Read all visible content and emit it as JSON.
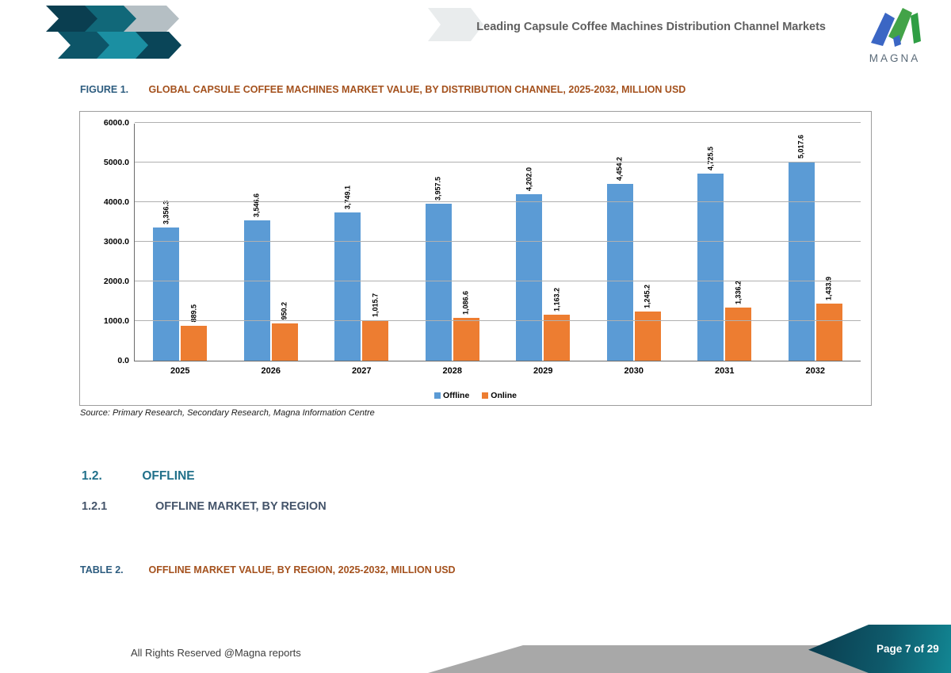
{
  "header": {
    "title": "Leading Capsule Coffee Machines Distribution Channel Markets",
    "logo_text": "MAGNA"
  },
  "figure": {
    "label": "FIGURE 1.",
    "title": "GLOBAL CAPSULE COFFEE MACHINES MARKET VALUE, BY DISTRIBUTION CHANNEL, 2025-2032, MILLION USD"
  },
  "chart_data": {
    "type": "bar",
    "categories": [
      "2025",
      "2026",
      "2027",
      "2028",
      "2029",
      "2030",
      "2031",
      "2032"
    ],
    "series": [
      {
        "name": "Offline",
        "color": "#5B9BD5",
        "values": [
          3356.3,
          3546.6,
          3749.1,
          3957.5,
          4202.0,
          4454.2,
          4725.5,
          5017.6
        ],
        "labels": [
          "3,356.3",
          "3,546.6",
          "3,749.1",
          "3,957.5",
          "4,202.0",
          "4,454.2",
          "4,725.5",
          "5,017.6"
        ]
      },
      {
        "name": "Online",
        "color": "#ED7D31",
        "values": [
          889.5,
          950.2,
          1015.7,
          1086.6,
          1163.2,
          1245.2,
          1336.2,
          1433.9
        ],
        "labels": [
          "889.5",
          "950.2",
          "1,015.7",
          "1,086.6",
          "1,163.2",
          "1,245.2",
          "1,336.2",
          "1,433.9"
        ]
      }
    ],
    "ylim": [
      0,
      6000
    ],
    "ytick_step": 1000,
    "yticks": [
      "0.0",
      "1000.0",
      "2000.0",
      "3000.0",
      "4000.0",
      "5000.0",
      "6000.0"
    ],
    "grid": true,
    "legend_position": "bottom"
  },
  "source": "Source: Primary Research, Secondary Research, Magna Information Centre",
  "sections": [
    {
      "number": "1.2.",
      "title": "OFFLINE"
    },
    {
      "number": "1.2.1",
      "title": "OFFLINE MARKET, BY REGION"
    }
  ],
  "table_caption": {
    "label": "TABLE 2.",
    "title": "OFFLINE MARKET VALUE, BY REGION, 2025-2032, MILLION USD"
  },
  "footer": {
    "rights": "All Rights Reserved @Magna reports",
    "page": "Page 7 of 29"
  },
  "colors": {
    "offline_bar": "#5B9BD5",
    "online_bar": "#ED7D31",
    "caption_label_blue": "#2d5c7f",
    "caption_title_orange": "#a4511d",
    "section_teal": "#21708a",
    "section_slate": "#44546a",
    "footer_teal_dark": "#0a3b4d",
    "footer_teal_light": "#128693",
    "footer_gray_band": "#a8a8a8",
    "chevron_dark_teal": "#0a3e50",
    "chevron_teal": "#1b8fa2"
  }
}
